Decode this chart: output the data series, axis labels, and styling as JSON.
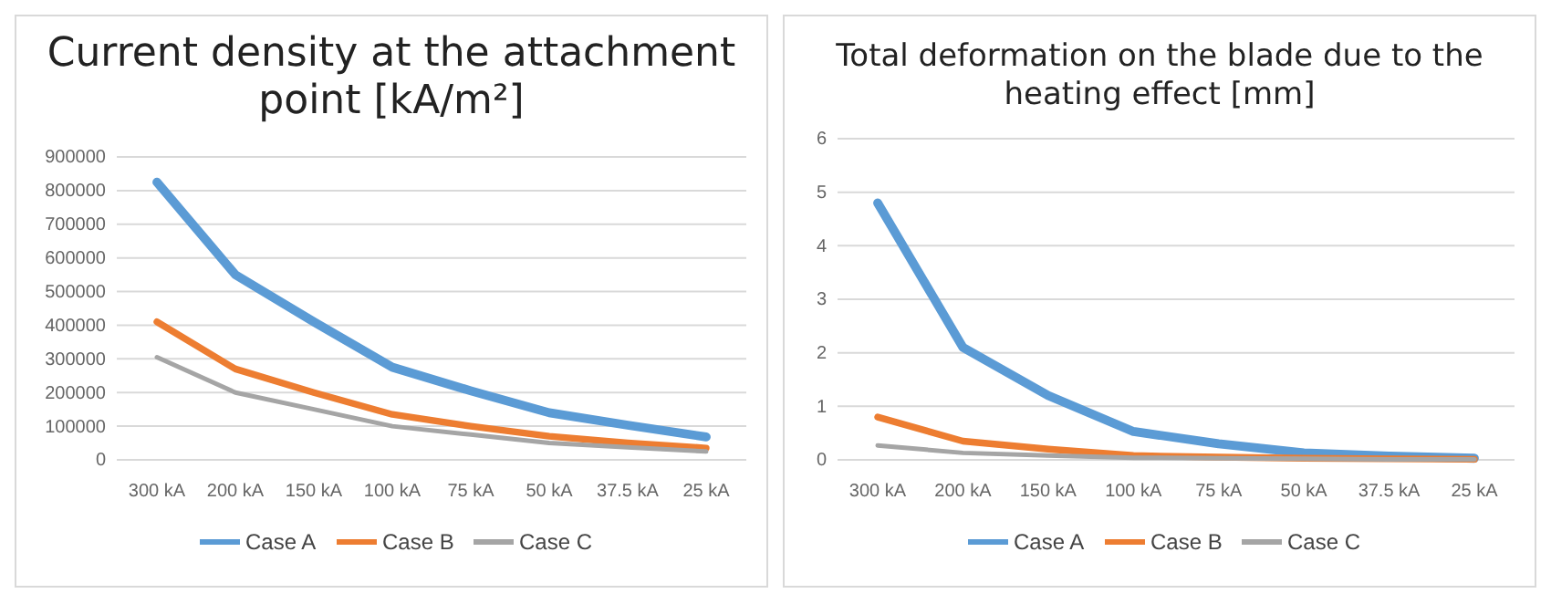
{
  "chart_data": [
    {
      "type": "line",
      "title": "Current density at the attachment point [kA/m²]",
      "categories": [
        "300 kA",
        "200 kA",
        "150 kA",
        "100 kA",
        "75 kA",
        "50 kA",
        "37.5 kA",
        "25 kA"
      ],
      "series": [
        {
          "name": "Case A",
          "color": "#5b9bd5",
          "values": [
            825000,
            550000,
            410000,
            275000,
            205000,
            140000,
            103000,
            68000
          ]
        },
        {
          "name": "Case B",
          "color": "#ed7d31",
          "values": [
            410000,
            270000,
            200000,
            135000,
            100000,
            70000,
            50000,
            35000
          ]
        },
        {
          "name": "Case C",
          "color": "#a5a5a5",
          "values": [
            305000,
            200000,
            150000,
            100000,
            75000,
            50000,
            37000,
            25000
          ]
        }
      ],
      "ylim": [
        0,
        900000
      ],
      "yticks": [
        0,
        100000,
        200000,
        300000,
        400000,
        500000,
        600000,
        700000,
        800000,
        900000
      ],
      "grid": "y",
      "legend": "bottom",
      "marker": "none",
      "line_style": "solid"
    },
    {
      "type": "line",
      "title": "Total deformation on the blade due to the heating effect [mm]",
      "categories": [
        "300 kA",
        "200 kA",
        "150 kA",
        "100 kA",
        "75 kA",
        "50 kA",
        "37.5 kA",
        "25 kA"
      ],
      "series": [
        {
          "name": "Case A",
          "color": "#5b9bd5",
          "values": [
            4.8,
            2.1,
            1.2,
            0.53,
            0.3,
            0.13,
            0.07,
            0.03
          ]
        },
        {
          "name": "Case B",
          "color": "#ed7d31",
          "values": [
            0.8,
            0.35,
            0.2,
            0.08,
            0.05,
            0.03,
            0.02,
            0.01
          ]
        },
        {
          "name": "Case C",
          "color": "#a5a5a5",
          "values": [
            0.27,
            0.13,
            0.08,
            0.04,
            0.03,
            0.02,
            0.01,
            0.01
          ]
        }
      ],
      "ylim": [
        0,
        6
      ],
      "yticks": [
        0,
        1,
        2,
        3,
        4,
        5,
        6
      ],
      "grid": "y",
      "legend": "bottom",
      "marker": "none",
      "line_style": "solid"
    }
  ]
}
